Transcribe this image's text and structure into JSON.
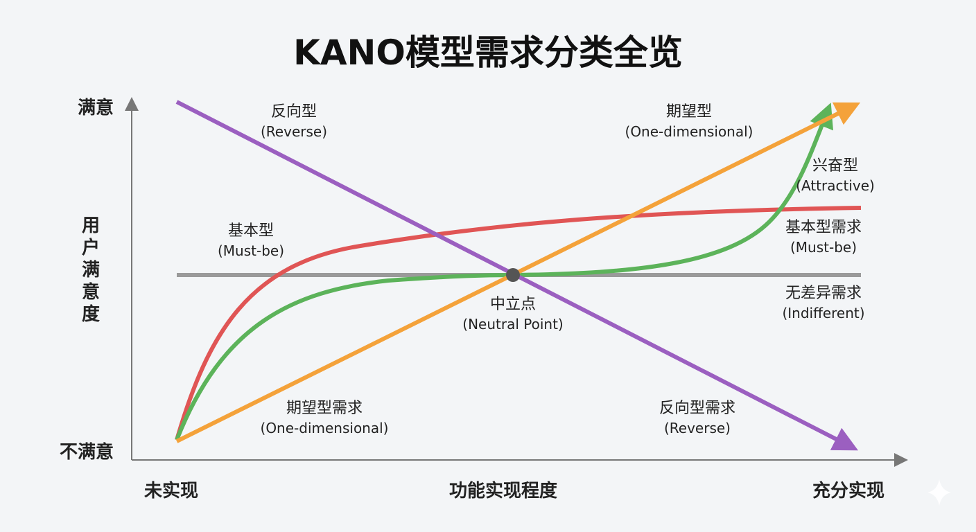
{
  "title": "KANO模型需求分类全览",
  "axes": {
    "y_top": "满意",
    "y_bottom": "不满意",
    "y_label": "用户满意度",
    "x_left": "未实现",
    "x_center": "功能实现程度",
    "x_right": "充分实现"
  },
  "labels": {
    "reverse_top": {
      "zh": "反向型",
      "en": "(Reverse)"
    },
    "one_dim_top": {
      "zh": "期望型",
      "en": "(One-dimensional)"
    },
    "attractive": {
      "zh": "兴奋型",
      "en": "(Attractive)"
    },
    "must_be_left": {
      "zh": "基本型",
      "en": "(Must-be)"
    },
    "must_be_right": {
      "zh": "基本型需求",
      "en": "(Must-be)"
    },
    "indifferent": {
      "zh": "无差异需求",
      "en": "(Indifferent)"
    },
    "neutral": {
      "zh": "中立点",
      "en": "(Neutral Point)"
    },
    "one_dim_bottom": {
      "zh": "期望型需求",
      "en": "(One-dimensional)"
    },
    "reverse_bottom": {
      "zh": "反向型需求",
      "en": "(Reverse)"
    }
  },
  "colors": {
    "reverse": "#9b5fc0",
    "one_dimensional": "#f4a23a",
    "attractive": "#5cb35a",
    "must_be": "#e05555",
    "indifferent": "#9a9a9a",
    "axis": "#777777"
  }
}
